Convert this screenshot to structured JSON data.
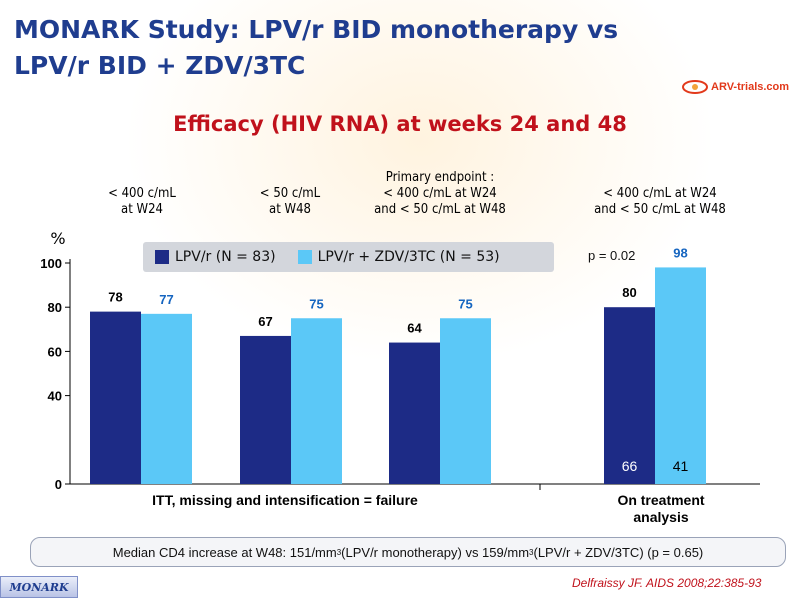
{
  "slide": {
    "title_line1": "MONARK Study: LPV/r BID monotherapy vs",
    "title_line2": "LPV/r BID + ZDV/3TC",
    "subtitle": "Efficacy (HIV RNA) at weeks 24 and 48",
    "logo_text": "ARV-trials.com",
    "study_badge": "MONARK",
    "source": "Delfraissy JF. AIDS 2008;22:385-93",
    "footnote": {
      "pre": "Median CD4 increase at W48: 151/mm",
      "sup1": "3",
      "mid": " (LPV/r monotherapy) vs 159/mm",
      "sup2": "3",
      "post": " (LPV/r + ZDV/3TC) (p = 0.65)"
    },
    "colors": {
      "title": "#1f3d8f",
      "subtitle": "#c0111b",
      "series1": "#c0111b",
      "series2_label": "#1565c0"
    }
  },
  "chart_data": {
    "type": "bar",
    "ylabel": "%",
    "ylim": [
      0,
      100
    ],
    "yticks": [
      0,
      40,
      60,
      80,
      100
    ],
    "category_labels": [
      [
        "< 400 c/mL",
        "at W24"
      ],
      [
        "< 50 c/mL",
        "at W48"
      ],
      [
        "Primary endpoint :",
        "< 400 c/mL at W24",
        "and < 50 c/mL at W48"
      ],
      [
        "< 400 c/mL at W24",
        "and < 50 c/mL at W48"
      ]
    ],
    "series": [
      {
        "name": "LPV/r (N = 83)",
        "color": "#1d2b86",
        "values": [
          78,
          67,
          64,
          80
        ]
      },
      {
        "name": "LPV/r + ZDV/3TC (N = 53)",
        "color": "#5bc8f7",
        "values": [
          77,
          75,
          75,
          98
        ]
      }
    ],
    "group_labels": [
      "ITT, missing and intensification = failure",
      "On treatment analysis"
    ],
    "group_label_lines": [
      [
        "ITT, missing and intensification = failure"
      ],
      [
        "On treatment",
        "analysis"
      ]
    ],
    "n_labels": [
      "66",
      "41"
    ],
    "annotation": "p = 0.02"
  }
}
